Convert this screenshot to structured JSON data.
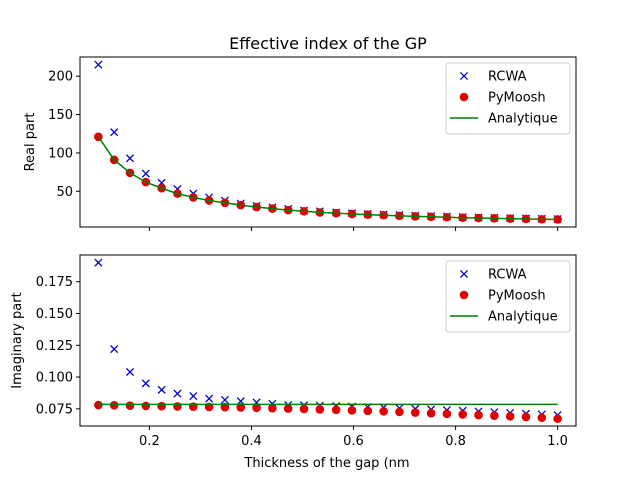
{
  "chart_data": [
    {
      "type": "scatter",
      "title": "Effective index of the GP",
      "xlabel": "",
      "ylabel": "Real part",
      "xlim": [
        0.064,
        1.036
      ],
      "ylim": [
        3.5,
        225
      ],
      "xticks": [
        0.2,
        0.4,
        0.6,
        0.8,
        1.0
      ],
      "xtick_labels": [
        "",
        "",
        "",
        "",
        ""
      ],
      "yticks": [
        50,
        100,
        150,
        200
      ],
      "ytick_labels": [
        "50",
        "100",
        "150",
        "200"
      ],
      "legend": "top-right",
      "grid": false,
      "x": [
        0.1,
        0.131,
        0.162,
        0.193,
        0.224,
        0.255,
        0.286,
        0.317,
        0.348,
        0.379,
        0.41,
        0.441,
        0.472,
        0.503,
        0.534,
        0.566,
        0.597,
        0.628,
        0.659,
        0.69,
        0.721,
        0.752,
        0.783,
        0.814,
        0.845,
        0.876,
        0.907,
        0.938,
        0.969,
        1.0
      ],
      "series": [
        {
          "name": "RCWA",
          "marker": "x",
          "color": "#0000cc",
          "values": [
            215,
            127,
            93,
            73,
            61,
            53,
            47,
            42,
            38,
            34,
            31,
            29,
            27,
            25,
            24,
            22.5,
            21.5,
            20.5,
            19.8,
            19,
            18.3,
            17.7,
            17.1,
            16.5,
            16,
            15.5,
            15,
            14.6,
            14.2,
            13.8
          ]
        },
        {
          "name": "PyMoosh",
          "marker": "o",
          "color": "#e00000",
          "values": [
            121,
            91,
            74,
            62,
            54,
            47,
            42,
            38,
            35,
            32,
            29.5,
            27.5,
            25.5,
            24,
            22.5,
            21.5,
            20.5,
            19.6,
            18.8,
            18,
            17.4,
            16.8,
            16.2,
            15.6,
            15.2,
            14.8,
            14.4,
            14,
            13.6,
            13.3
          ]
        },
        {
          "name": "Analytique",
          "marker": "line",
          "color": "#007f00",
          "values": [
            121,
            91,
            74,
            62,
            54,
            47,
            42,
            38,
            35,
            32,
            29.5,
            27.5,
            25.5,
            24,
            22.5,
            21.5,
            20.5,
            19.6,
            18.8,
            18,
            17.4,
            16.8,
            16.2,
            15.6,
            15.2,
            14.8,
            14.4,
            14,
            13.6,
            13.3
          ]
        }
      ]
    },
    {
      "type": "scatter",
      "title": "",
      "xlabel": "Thickness of the gap (nm",
      "ylabel": "Imaginary part",
      "xlim": [
        0.064,
        1.036
      ],
      "ylim": [
        0.0615,
        0.196
      ],
      "xticks": [
        0.2,
        0.4,
        0.6,
        0.8,
        1.0
      ],
      "xtick_labels": [
        "0.2",
        "0.4",
        "0.6",
        "0.8",
        "1.0"
      ],
      "yticks": [
        0.075,
        0.1,
        0.125,
        0.15,
        0.175
      ],
      "ytick_labels": [
        "0.075",
        "0.100",
        "0.125",
        "0.150",
        "0.175"
      ],
      "legend": "top-right",
      "grid": false,
      "x": [
        0.1,
        0.131,
        0.162,
        0.193,
        0.224,
        0.255,
        0.286,
        0.317,
        0.348,
        0.379,
        0.41,
        0.441,
        0.472,
        0.503,
        0.534,
        0.566,
        0.597,
        0.628,
        0.659,
        0.69,
        0.721,
        0.752,
        0.783,
        0.814,
        0.845,
        0.876,
        0.907,
        0.938,
        0.969,
        1.0
      ],
      "series": [
        {
          "name": "RCWA",
          "marker": "x",
          "color": "#0000cc",
          "values": [
            0.19,
            0.122,
            0.104,
            0.095,
            0.09,
            0.087,
            0.085,
            0.083,
            0.082,
            0.081,
            0.08,
            0.079,
            0.078,
            0.0778,
            0.0775,
            0.0772,
            0.0768,
            0.0764,
            0.076,
            0.0755,
            0.075,
            0.0745,
            0.074,
            0.0735,
            0.073,
            0.0724,
            0.0718,
            0.0712,
            0.0706,
            0.07
          ]
        },
        {
          "name": "PyMoosh",
          "marker": "o",
          "color": "#e00000",
          "values": [
            0.078,
            0.0778,
            0.0775,
            0.0773,
            0.0771,
            0.0769,
            0.0767,
            0.0765,
            0.0763,
            0.0761,
            0.0758,
            0.0755,
            0.0752,
            0.0749,
            0.0745,
            0.0742,
            0.0738,
            0.0734,
            0.073,
            0.0726,
            0.0721,
            0.0716,
            0.0711,
            0.0706,
            0.0701,
            0.0696,
            0.0691,
            0.0686,
            0.068,
            0.0672
          ]
        },
        {
          "name": "Analytique",
          "marker": "line",
          "color": "#007f00",
          "values": [
            0.0785,
            0.0785,
            0.0785,
            0.0785,
            0.0785,
            0.0785,
            0.0785,
            0.0785,
            0.0785,
            0.0785,
            0.0785,
            0.0785,
            0.0785,
            0.0785,
            0.0785,
            0.0785,
            0.0785,
            0.0785,
            0.0785,
            0.0785,
            0.0785,
            0.0785,
            0.0785,
            0.0785,
            0.0785,
            0.0785,
            0.0785,
            0.0785,
            0.0785,
            0.0785
          ]
        }
      ]
    }
  ]
}
